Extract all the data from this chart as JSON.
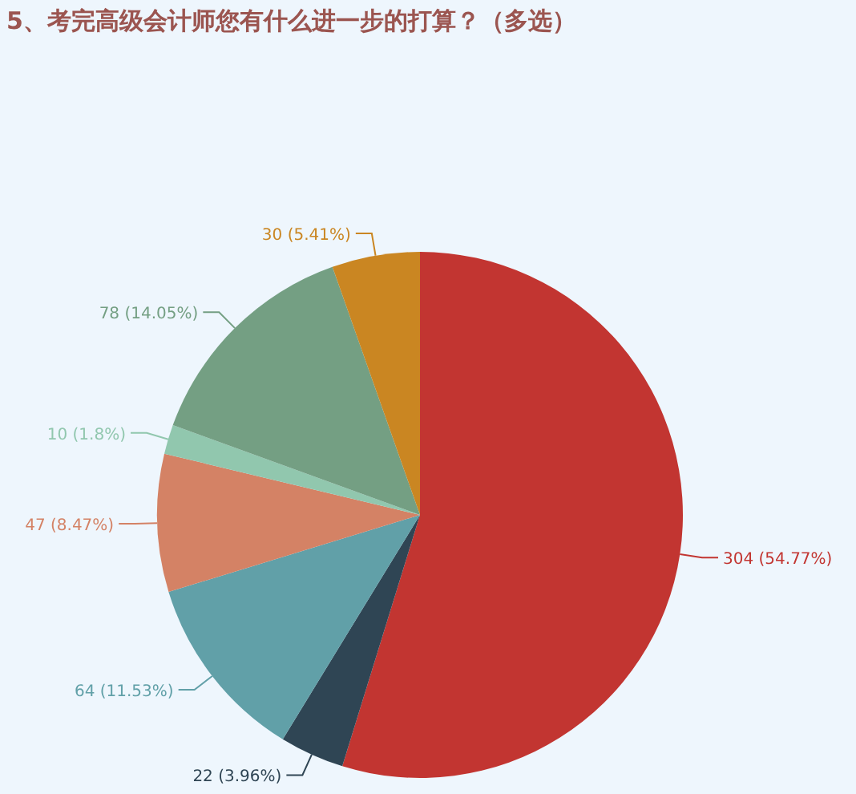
{
  "chart_data": {
    "type": "pie",
    "title": "5、考完高级会计师您有什么进一步的打算？（多选）",
    "categories": [
      null,
      null,
      null,
      null,
      null,
      null,
      null
    ],
    "values": [
      304,
      22,
      64,
      47,
      10,
      78,
      30
    ],
    "colors": [
      "#c23531",
      "#2f4554",
      "#61a0a8",
      "#d48265",
      "#91c7ae",
      "#749f83",
      "#ca8622"
    ],
    "value_labels": [
      "304 (54.77%)",
      "22 (3.96%)",
      "64 (11.53%)",
      "47 (8.47%)",
      "10 (1.8%)",
      "78 (14.05%)",
      "30 (5.41%)"
    ]
  }
}
